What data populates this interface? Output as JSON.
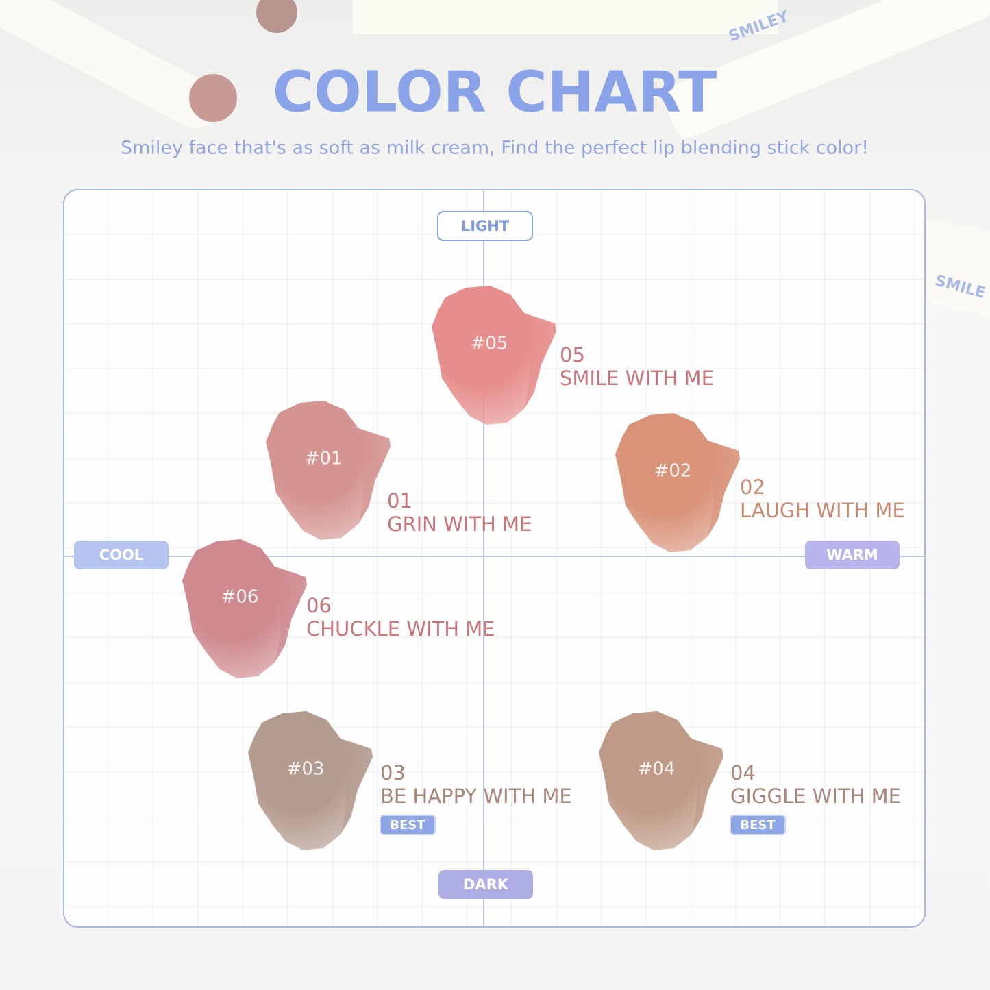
{
  "header": {
    "title": "COLOR CHART",
    "subtitle": "Smiley face that's as soft as milk cream, Find the perfect lip blending stick color!"
  },
  "background_marks": [
    "SMILEY",
    "SMILE"
  ],
  "axes": {
    "top": "LIGHT",
    "bottom": "DARK",
    "left": "COOL",
    "right": "WARM"
  },
  "swatches": [
    {
      "code": "#05",
      "number": "05",
      "name": "SMILE WITH ME",
      "color": "#e68e8d",
      "text_color": "#c9767a"
    },
    {
      "code": "#01",
      "number": "01",
      "name": "GRIN WITH ME",
      "color": "#d49491",
      "text_color": "#c9767a"
    },
    {
      "code": "#02",
      "number": "02",
      "name": "LAUGH WITH ME",
      "color": "#d99379",
      "text_color": "#c98a72"
    },
    {
      "code": "#06",
      "number": "06",
      "name": "CHUCKLE WITH ME",
      "color": "#cf8a8f",
      "text_color": "#c9767a"
    },
    {
      "code": "#03",
      "number": "03",
      "name": "BE HAPPY WITH ME",
      "color": "#b49b8f",
      "text_color": "#a8877a",
      "badge": "BEST"
    },
    {
      "code": "#04",
      "number": "04",
      "name": "GIGGLE WITH ME",
      "color": "#bf9a86",
      "text_color": "#a8877a",
      "badge": "BEST"
    }
  ]
}
